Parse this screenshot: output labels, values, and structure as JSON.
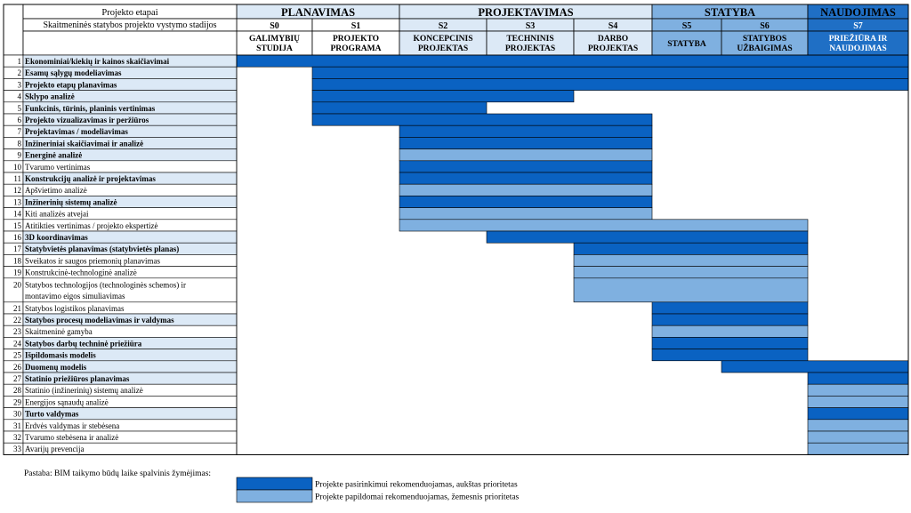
{
  "header": {
    "row_label_1": "Projekto etapai",
    "row_label_2": "Skaitmeninės statybos projekto vystymo stadijos"
  },
  "phases": [
    {
      "name": "PLANAVIMAS",
      "from": 0,
      "to": 1,
      "color": "#dce9f6"
    },
    {
      "name": "PROJEKTAVIMAS",
      "from": 2,
      "to": 4,
      "color": "#dce9f6"
    },
    {
      "name": "STATYBA",
      "from": 5,
      "to": 6,
      "color": "#7fb0e0"
    },
    {
      "name": "NAUDOJIMAS",
      "from": 7,
      "to": 7,
      "color": "#1f6fc5"
    }
  ],
  "stages": [
    {
      "code": "S0",
      "label1": "GALIMYBIŲ",
      "label2": "STUDIJA",
      "color": "#ffffff",
      "label_color": "#000000"
    },
    {
      "code": "S1",
      "label1": "PROJEKTO",
      "label2": "PROGRAMA",
      "color": "#ffffff",
      "label_color": "#000000"
    },
    {
      "code": "S2",
      "label1": "KONCEPCINIS",
      "label2": "PROJEKTAS",
      "color": "#dce9f6",
      "label_color": "#000000"
    },
    {
      "code": "S3",
      "label1": "TECHNINIS",
      "label2": "PROJEKTAS",
      "color": "#dce9f6",
      "label_color": "#000000"
    },
    {
      "code": "S4",
      "label1": "DARBO",
      "label2": "PROJEKTAS",
      "color": "#dce9f6",
      "label_color": "#000000"
    },
    {
      "code": "S5",
      "label1": "STATYBA",
      "label2": "",
      "color": "#7fb0e0",
      "label_color": "#000000"
    },
    {
      "code": "S6",
      "label1": "STATYBOS",
      "label2": "UŽBAIGIMAS",
      "color": "#7fb0e0",
      "label_color": "#000000"
    },
    {
      "code": "S7",
      "label1": "PRIEŽIŪRA IR",
      "label2": "NAUDOJIMAS",
      "color": "#1f6fc5",
      "label_color": "#ffffff"
    }
  ],
  "chart_data": {
    "type": "table",
    "priority_legend": [
      {
        "key": "high",
        "color": "#0a62c2",
        "label": "Projekte pasirinkimui rekomenduojamas, aukštas prioritetas"
      },
      {
        "key": "low",
        "color": "#7fb0e0",
        "label": "Projekte papildomai rekomenduojamas, žemesnis prioritetas"
      }
    ],
    "rows": [
      {
        "n": "1",
        "name": "Ekonominiai/kiekių ir kainos skaičiavimai",
        "bold": true,
        "start": "S0",
        "end": "S7",
        "priority": "high"
      },
      {
        "n": "2",
        "name": "Esamų sąlygų modeliavimas",
        "bold": true,
        "start": "S1",
        "end": "S7",
        "priority": "high"
      },
      {
        "n": "3",
        "name": "Projekto etapų planavimas",
        "bold": true,
        "start": "S1",
        "end": "S7",
        "priority": "high"
      },
      {
        "n": "4",
        "name": "Sklypo analizė",
        "bold": true,
        "start": "S1",
        "end": "S3",
        "priority": "high"
      },
      {
        "n": "5",
        "name": "Funkcinis, tūrinis, planinis vertinimas",
        "bold": true,
        "start": "S1",
        "end": "S2",
        "priority": "high"
      },
      {
        "n": "6",
        "name": "Projekto vizualizavimas ir peržiūros",
        "bold": true,
        "start": "S1",
        "end": "S4",
        "priority": "high"
      },
      {
        "n": "7",
        "name": "Projektavimas / modeliavimas",
        "bold": true,
        "start": "S2",
        "end": "S4",
        "priority": "high"
      },
      {
        "n": "8",
        "name": "Inžineriniai skaičiavimai ir analizė",
        "bold": true,
        "start": "S2",
        "end": "S4",
        "priority": "high"
      },
      {
        "n": "9",
        "name": "Energinė analizė",
        "bold": true,
        "start": "S2",
        "end": "S4",
        "priority": "low"
      },
      {
        "n": "10",
        "name": "Tvarumo vertinimas",
        "bold": false,
        "start": "S2",
        "end": "S4",
        "priority": "high"
      },
      {
        "n": "11",
        "name": "Konstrukcijų analizė ir projektavimas",
        "bold": true,
        "start": "S2",
        "end": "S4",
        "priority": "high"
      },
      {
        "n": "12",
        "name": "Apšvietimo analizė",
        "bold": false,
        "start": "S2",
        "end": "S4",
        "priority": "low"
      },
      {
        "n": "13",
        "name": "Inžinerinių sistemų analizė",
        "bold": true,
        "start": "S2",
        "end": "S4",
        "priority": "high"
      },
      {
        "n": "14",
        "name": "Kiti analizės atvejai",
        "bold": false,
        "start": "S2",
        "end": "S4",
        "priority": "low"
      },
      {
        "n": "15",
        "name": "Atitikties vertinimas / projekto ekspertizė",
        "bold": false,
        "start": "S2",
        "end": "S6",
        "priority": "low"
      },
      {
        "n": "16",
        "name": "3D koordinavimas",
        "bold": true,
        "start": "S3",
        "end": "S6",
        "priority": "high"
      },
      {
        "n": "17",
        "name": "Statybvietės planavimas (statybvietės planas)",
        "bold": true,
        "start": "S4",
        "end": "S6",
        "priority": "high"
      },
      {
        "n": "18",
        "name": "Sveikatos ir saugos priemonių planavimas",
        "bold": false,
        "start": "S4",
        "end": "S6",
        "priority": "low"
      },
      {
        "n": "19",
        "name": "Konstrukcinė-technologinė analizė",
        "bold": false,
        "start": "S4",
        "end": "S6",
        "priority": "low"
      },
      {
        "n": "20",
        "name": "Statybos technologijos (technologinės schemos) ir",
        "name2": "montavimo eigos simuliavimas",
        "bold": false,
        "start": "S4",
        "end": "S6",
        "priority": "low",
        "tall": true
      },
      {
        "n": "21",
        "name": "Statybos logistikos planavimas",
        "bold": false,
        "start": "S5",
        "end": "S6",
        "priority": "high"
      },
      {
        "n": "22",
        "name": "Statybos procesų modeliavimas ir valdymas",
        "bold": true,
        "start": "S5",
        "end": "S6",
        "priority": "high"
      },
      {
        "n": "23",
        "name": "Skaitmeninė gamyba",
        "bold": false,
        "start": "S5",
        "end": "S6",
        "priority": "low"
      },
      {
        "n": "24",
        "name": "Statybos darbų techninė priežiūra",
        "bold": true,
        "start": "S5",
        "end": "S6",
        "priority": "high"
      },
      {
        "n": "25",
        "name": "Išpildomasis modelis",
        "bold": true,
        "start": "S5",
        "end": "S6",
        "priority": "high"
      },
      {
        "n": "26",
        "name": "Duomenų modelis",
        "bold": true,
        "start": "S6",
        "end": "S7",
        "priority": "high"
      },
      {
        "n": "27",
        "name": "Statinio priežiūros planavimas",
        "bold": true,
        "start": "S7",
        "end": "S7",
        "priority": "high"
      },
      {
        "n": "28",
        "name": "Statinio (inžinerinių) sistemų analizė",
        "bold": false,
        "start": "S7",
        "end": "S7",
        "priority": "low"
      },
      {
        "n": "29",
        "name": "Energijos sąnaudų analizė",
        "bold": false,
        "start": "S7",
        "end": "S7",
        "priority": "low"
      },
      {
        "n": "30",
        "name": "Turto valdymas",
        "bold": true,
        "start": "S7",
        "end": "S7",
        "priority": "high"
      },
      {
        "n": "31",
        "name": "Erdvės valdymas ir stebėsena",
        "bold": false,
        "start": "S7",
        "end": "S7",
        "priority": "low"
      },
      {
        "n": "32",
        "name": "Tvarumo stebėsena ir analizė",
        "bold": false,
        "start": "S7",
        "end": "S7",
        "priority": "low"
      },
      {
        "n": "33",
        "name": "Avarijų prevencija",
        "bold": false,
        "start": "S7",
        "end": "S7",
        "priority": "low"
      }
    ]
  },
  "note": "Pastaba: BIM taikymo būdų laike spalvinis žymėjimas:"
}
